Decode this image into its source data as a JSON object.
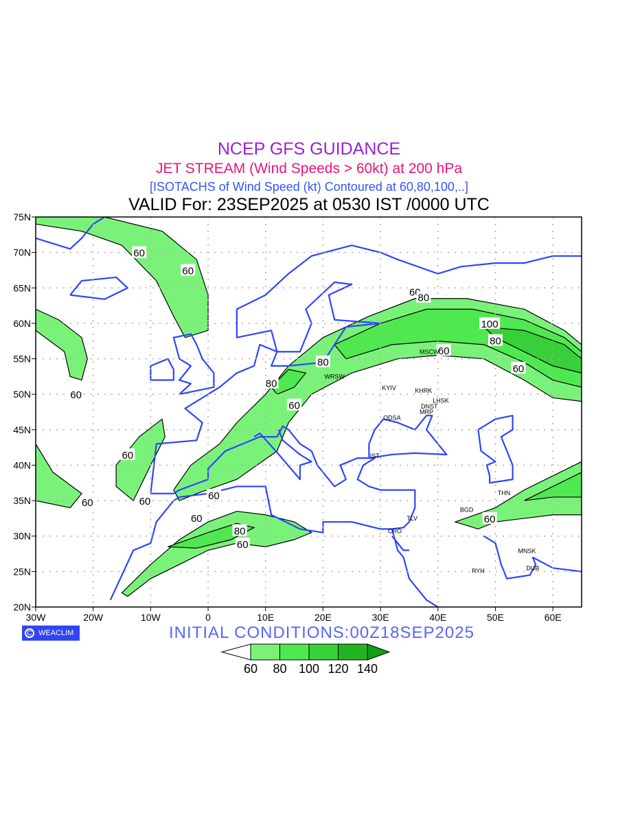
{
  "titles": {
    "line1": "NCEP GFS GUIDANCE",
    "line2": "JET STREAM (Wind Speeds > 60kt) at 200 hPa",
    "line3": "[ISOTACHS of Wind Speed (kt) Contoured at 60,80,100,..]",
    "line4": "VALID For: 23SEP2025 at 0530 IST /0000 UTC"
  },
  "badge": {
    "icon": "copyright-icon",
    "symbol": "C",
    "label": "WEACLIM"
  },
  "initial_conditions": "INITIAL  CONDITIONS:00Z18SEP2025",
  "colors": {
    "c60": "#7af27a",
    "c80": "#50e850",
    "c100": "#38d038",
    "c120": "#22b522",
    "c140": "#12a012",
    "coast": "#2b45ff",
    "grid": "#aaaaaa"
  },
  "chart_data": {
    "type": "map",
    "extent": {
      "lon": [
        -30,
        65
      ],
      "lat": [
        20,
        75
      ]
    },
    "lon_ticks": [
      {
        "v": -30,
        "label": "30W"
      },
      {
        "v": -20,
        "label": "20W"
      },
      {
        "v": -10,
        "label": "10W"
      },
      {
        "v": 0,
        "label": "0"
      },
      {
        "v": 10,
        "label": "10E"
      },
      {
        "v": 20,
        "label": "20E"
      },
      {
        "v": 30,
        "label": "30E"
      },
      {
        "v": 40,
        "label": "40E"
      },
      {
        "v": 50,
        "label": "50E"
      },
      {
        "v": 60,
        "label": "60E"
      }
    ],
    "lat_ticks": [
      {
        "v": 20,
        "label": "20N"
      },
      {
        "v": 25,
        "label": "25N"
      },
      {
        "v": 30,
        "label": "30N"
      },
      {
        "v": 35,
        "label": "35N"
      },
      {
        "v": 40,
        "label": "40N"
      },
      {
        "v": 45,
        "label": "45N"
      },
      {
        "v": 50,
        "label": "50N"
      },
      {
        "v": 55,
        "label": "55N"
      },
      {
        "v": 60,
        "label": "60N"
      },
      {
        "v": 65,
        "label": "65N"
      },
      {
        "v": 70,
        "label": "70N"
      },
      {
        "v": 75,
        "label": "75N"
      }
    ],
    "legend": {
      "levels": [
        "60",
        "80",
        "100",
        "120",
        "140"
      ]
    },
    "isotach_regions": [
      {
        "level": 60,
        "pts": [
          [
            -6,
            36.5
          ],
          [
            -3,
            40
          ],
          [
            2,
            43
          ],
          [
            5,
            46
          ],
          [
            10,
            50
          ],
          [
            14,
            54
          ],
          [
            20,
            58
          ],
          [
            28,
            61
          ],
          [
            36,
            63.5
          ],
          [
            45,
            63.5
          ],
          [
            55,
            62
          ],
          [
            62,
            59
          ],
          [
            65,
            57
          ],
          [
            65,
            49
          ],
          [
            60,
            49.5
          ],
          [
            55,
            52
          ],
          [
            48,
            55
          ],
          [
            40,
            55.5
          ],
          [
            33,
            55
          ],
          [
            25,
            53
          ],
          [
            18,
            50
          ],
          [
            14,
            46
          ],
          [
            12,
            42
          ],
          [
            5,
            38
          ],
          [
            -2,
            36
          ],
          [
            -5,
            35
          ]
        ]
      },
      {
        "level": 60,
        "pts": [
          [
            -30,
            75
          ],
          [
            -18,
            75
          ],
          [
            -8,
            73
          ],
          [
            -2,
            69
          ],
          [
            0,
            64
          ],
          [
            0,
            59
          ],
          [
            -4,
            58
          ],
          [
            -6,
            61
          ],
          [
            -9,
            66
          ],
          [
            -15,
            71
          ],
          [
            -22,
            73
          ],
          [
            -30,
            74
          ]
        ]
      },
      {
        "level": 60,
        "pts": [
          [
            -30,
            62
          ],
          [
            -26,
            60.5
          ],
          [
            -22,
            58
          ],
          [
            -21,
            55
          ],
          [
            -22,
            52
          ],
          [
            -24,
            52.5
          ],
          [
            -25,
            56
          ],
          [
            -30,
            59
          ]
        ]
      },
      {
        "level": 60,
        "pts": [
          [
            -16,
            40
          ],
          [
            -12,
            44
          ],
          [
            -8,
            46.5
          ],
          [
            -7.5,
            44
          ],
          [
            -10,
            40
          ],
          [
            -13,
            35
          ],
          [
            -16,
            37
          ]
        ]
      },
      {
        "level": 60,
        "pts": [
          [
            -30,
            43
          ],
          [
            -27,
            39
          ],
          [
            -22,
            36
          ],
          [
            -24,
            34
          ],
          [
            -30,
            35
          ]
        ]
      },
      {
        "level": 60,
        "pts": [
          [
            -15,
            22
          ],
          [
            -10,
            26
          ],
          [
            -5,
            29.5
          ],
          [
            0,
            32
          ],
          [
            5,
            33.5
          ],
          [
            10,
            33
          ],
          [
            15,
            32
          ],
          [
            18,
            30.5
          ],
          [
            15,
            29.5
          ],
          [
            10,
            28.5
          ],
          [
            5,
            29
          ],
          [
            0,
            28
          ],
          [
            -5,
            26
          ],
          [
            -10,
            24
          ],
          [
            -14,
            21.5
          ]
        ]
      },
      {
        "level": 60,
        "pts": [
          [
            43,
            32
          ],
          [
            50,
            34
          ],
          [
            55,
            36.5
          ],
          [
            60,
            38.5
          ],
          [
            65,
            40.5
          ],
          [
            65,
            33
          ],
          [
            60,
            33
          ],
          [
            55,
            32.5
          ],
          [
            50,
            32
          ],
          [
            47,
            31
          ],
          [
            45,
            31.5
          ]
        ]
      },
      {
        "level": 80,
        "pts": [
          [
            22,
            57
          ],
          [
            30,
            60
          ],
          [
            38,
            62
          ],
          [
            46,
            62
          ],
          [
            55,
            60.5
          ],
          [
            62,
            58
          ],
          [
            65,
            56
          ],
          [
            65,
            51
          ],
          [
            60,
            52
          ],
          [
            55,
            54.5
          ],
          [
            48,
            57
          ],
          [
            40,
            57.5
          ],
          [
            32,
            57
          ],
          [
            24,
            55
          ]
        ]
      },
      {
        "level": 80,
        "pts": [
          [
            11,
            51
          ],
          [
            14,
            53.5
          ],
          [
            17,
            53
          ],
          [
            15,
            51
          ],
          [
            12,
            50
          ]
        ]
      },
      {
        "level": 80,
        "pts": [
          [
            -7,
            28.5
          ],
          [
            0,
            30.5
          ],
          [
            5,
            31.8
          ],
          [
            8,
            31.2
          ],
          [
            4,
            29.5
          ],
          [
            -2,
            28.3
          ]
        ]
      },
      {
        "level": 80,
        "pts": [
          [
            55,
            35
          ],
          [
            60,
            37
          ],
          [
            65,
            39
          ],
          [
            65,
            35.5
          ],
          [
            60,
            35.5
          ]
        ]
      },
      {
        "level": 100,
        "pts": [
          [
            48,
            59.5
          ],
          [
            55,
            59
          ],
          [
            62,
            57
          ],
          [
            65,
            55
          ],
          [
            65,
            53
          ],
          [
            60,
            54
          ],
          [
            55,
            56
          ],
          [
            50,
            58
          ]
        ]
      }
    ],
    "contour_labels": [
      {
        "text": "60",
        "lon": -12,
        "lat": 70
      },
      {
        "text": "60",
        "lon": -3.5,
        "lat": 67.5
      },
      {
        "text": "60",
        "lon": -23,
        "lat": 50
      },
      {
        "text": "60",
        "lon": -14,
        "lat": 41.5
      },
      {
        "text": "60",
        "lon": -11,
        "lat": 35
      },
      {
        "text": "60",
        "lon": -21,
        "lat": 34.8
      },
      {
        "text": "60",
        "lon": 1,
        "lat": 35.8
      },
      {
        "text": "60",
        "lon": -2,
        "lat": 32.6
      },
      {
        "text": "80",
        "lon": 5.5,
        "lat": 30.8
      },
      {
        "text": "60",
        "lon": 6,
        "lat": 28.9
      },
      {
        "text": "60",
        "lon": 15,
        "lat": 48.5
      },
      {
        "text": "80",
        "lon": 11,
        "lat": 51.6
      },
      {
        "text": "80",
        "lon": 20,
        "lat": 54.6
      },
      {
        "text": "60",
        "lon": 36,
        "lat": 64.5
      },
      {
        "text": "80",
        "lon": 37.5,
        "lat": 63.7
      },
      {
        "text": "100",
        "lon": 49,
        "lat": 60
      },
      {
        "text": "80",
        "lon": 50,
        "lat": 57.6
      },
      {
        "text": "60",
        "lon": 41,
        "lat": 56.2
      },
      {
        "text": "60",
        "lon": 54,
        "lat": 53.7
      },
      {
        "text": "60",
        "lon": 49,
        "lat": 32.5
      }
    ],
    "cities": [
      {
        "text": "MSCW",
        "lon": 38.5,
        "lat": 55.7
      },
      {
        "text": "WRSW",
        "lon": 22,
        "lat": 52.2
      },
      {
        "text": "KYIV",
        "lon": 31.5,
        "lat": 50.6
      },
      {
        "text": "KHRK",
        "lon": 37.5,
        "lat": 50.2
      },
      {
        "text": "LHSK",
        "lon": 40.5,
        "lat": 48.8
      },
      {
        "text": "DNST",
        "lon": 38.5,
        "lat": 48
      },
      {
        "text": "MRP",
        "lon": 38,
        "lat": 47.2
      },
      {
        "text": "ODSA",
        "lon": 32,
        "lat": 46.4
      },
      {
        "text": "IST",
        "lon": 29,
        "lat": 41
      },
      {
        "text": "THN",
        "lon": 51.5,
        "lat": 35.8
      },
      {
        "text": "BGD",
        "lon": 45,
        "lat": 33.4
      },
      {
        "text": "TLV",
        "lon": 35.5,
        "lat": 32.2
      },
      {
        "text": "CRO",
        "lon": 32.5,
        "lat": 30.4
      },
      {
        "text": "MNSK",
        "lon": 55.5,
        "lat": 27.6
      },
      {
        "text": "RYH",
        "lon": 47,
        "lat": 24.8
      },
      {
        "text": "DUB",
        "lon": 56.5,
        "lat": 25.2
      }
    ]
  }
}
